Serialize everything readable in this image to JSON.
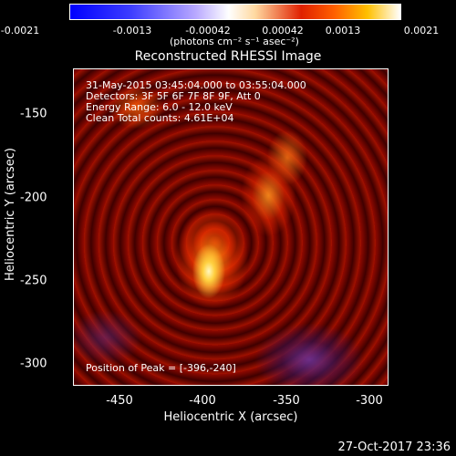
{
  "colorbar": {
    "ticks": [
      "-0.0021",
      "-0.0013",
      "-0.00042",
      "0.00042",
      "0.0013",
      "0.0021"
    ],
    "unit_label": "(photons cm⁻² s⁻¹ asec⁻²)"
  },
  "plot": {
    "title": "Reconstructed RHESSI Image",
    "xlabel": "Heliocentric X (arcsec)",
    "ylabel": "Heliocentric Y (arcsec)",
    "x_ticks": [
      "-450",
      "-400",
      "-350",
      "-300"
    ],
    "y_ticks": [
      "-150",
      "-200",
      "-250",
      "-300"
    ],
    "info_lines": [
      "31-May-2015 03:45:04.000 to 03:55:04.000",
      "Detectors: 3F 5F 6F 7F 8F 9F, Att 0",
      "Energy Range: 6.0 - 12.0 keV",
      "Clean    Total counts: 4.61E+04"
    ],
    "peak_text": "Position of Peak = [-396,-240]"
  },
  "footer": {
    "timestamp": "27-Oct-2017 23:36"
  }
}
